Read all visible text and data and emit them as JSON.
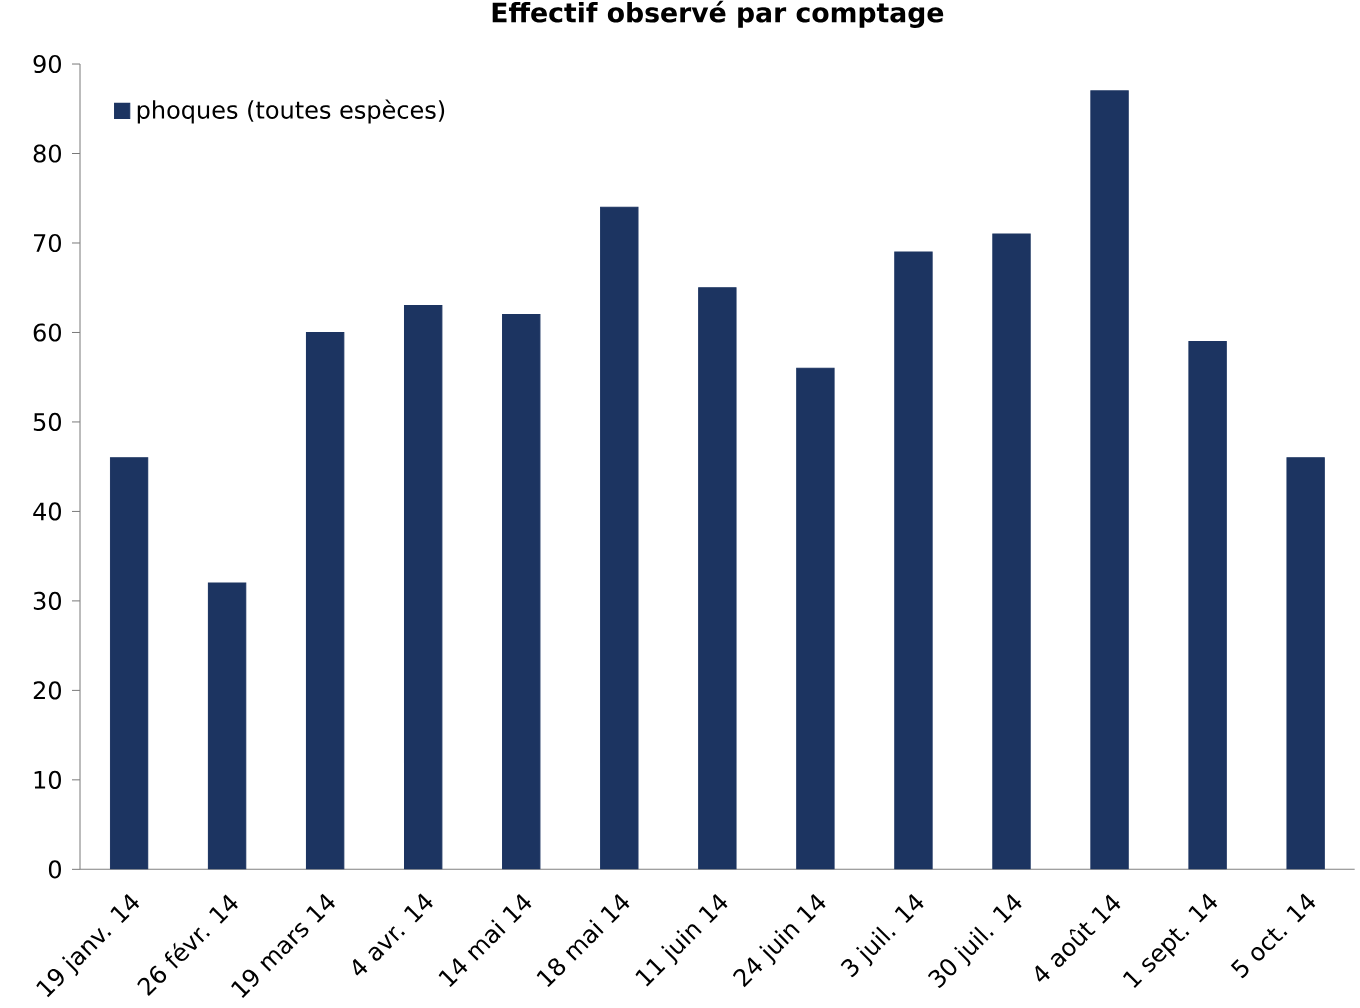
{
  "chart_data": {
    "type": "bar",
    "title": "Effectif observé par comptage",
    "categories": [
      "19 janv. 14",
      "26 févr. 14",
      "19 mars 14",
      "4 avr. 14",
      "14 mai 14",
      "18 mai 14",
      "11 juin 14",
      "24 juin 14",
      "3 juil. 14",
      "30 juil. 14",
      "4 août 14",
      "1 sept. 14",
      "5 oct. 14"
    ],
    "series": [
      {
        "name": "phoques (toutes espèces)",
        "color": "#1c3461",
        "values": [
          46,
          32,
          60,
          63,
          62,
          74,
          65,
          56,
          69,
          71,
          87,
          59,
          46
        ]
      }
    ],
    "ylim": [
      0,
      90
    ],
    "yticks": [
      0,
      10,
      20,
      30,
      40,
      50,
      60,
      70,
      80,
      90
    ],
    "legend": "top left",
    "grid": false
  }
}
